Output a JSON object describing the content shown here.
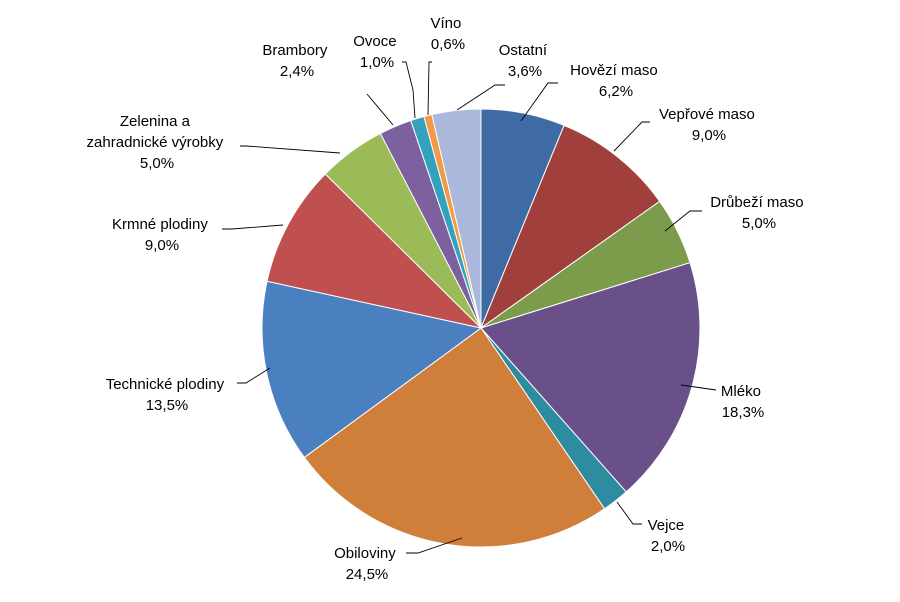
{
  "chart_data": {
    "type": "pie",
    "title": "",
    "start_angle_deg": 0,
    "direction": "clockwise",
    "slices": [
      {
        "name": "Hovězí maso",
        "value": 6.2,
        "label_value": "6,2%",
        "color": "#3e6ba4"
      },
      {
        "name": "Vepřové maso",
        "value": 9.0,
        "label_value": "9,0%",
        "color": "#a03f3c"
      },
      {
        "name": "Drůbeží maso",
        "value": 5.0,
        "label_value": "5,0%",
        "color": "#7c9c4c"
      },
      {
        "name": "Mléko",
        "value": 18.3,
        "label_value": "18,3%",
        "color": "#6a5088"
      },
      {
        "name": "Vejce",
        "value": 2.0,
        "label_value": "2,0%",
        "color": "#2e8ca0"
      },
      {
        "name": "Obiloviny",
        "value": 24.5,
        "label_value": "24,5%",
        "color": "#d07f3a"
      },
      {
        "name": "Technické plodiny",
        "value": 13.5,
        "label_value": "13,5%",
        "color": "#4a7fc0"
      },
      {
        "name": "Krmné plodiny",
        "value": 9.0,
        "label_value": "9,0%",
        "color": "#c05050"
      },
      {
        "name": "Zelenina a zahradnické výrobky",
        "value": 5.0,
        "label_value": "5,0%",
        "color": "#9bbb58"
      },
      {
        "name": "Brambory",
        "value": 2.4,
        "label_value": "2,4%",
        "color": "#7d60a0"
      },
      {
        "name": "Ovoce",
        "value": 1.0,
        "label_value": "1,0%",
        "color": "#34a2be"
      },
      {
        "name": "Víno",
        "value": 0.6,
        "label_value": "0,6%",
        "color": "#f39a47"
      },
      {
        "name": "Ostatní",
        "value": 3.6,
        "label_value": "3,6%",
        "color": "#a9b8db"
      }
    ]
  },
  "labels": {
    "hovezi": {
      "line1": "Hovězí maso",
      "line2": "6,2%"
    },
    "veprove": {
      "line1": "Vepřové maso",
      "line2": "9,0%"
    },
    "drubezi": {
      "line1": "Drůbeží maso",
      "line2": "5,0%"
    },
    "mleko": {
      "line1": "Mléko",
      "line2": "18,3%"
    },
    "vejce": {
      "line1": "Vejce",
      "line2": "2,0%"
    },
    "obiloviny": {
      "line1": "Obiloviny",
      "line2": "24,5%"
    },
    "technicke": {
      "line1": "Technické plodiny",
      "line2": "13,5%"
    },
    "krmne": {
      "line1": "Krmné plodiny",
      "line2": "9,0%"
    },
    "zelenina": {
      "line1": "Zelenina a",
      "line2": "zahradnické výrobky",
      "line3": "5,0%"
    },
    "brambory": {
      "line1": "Brambory",
      "line2": "2,4%"
    },
    "ovoce": {
      "line1": "Ovoce",
      "line2": "1,0%"
    },
    "vino": {
      "line1": "Víno",
      "line2": "0,6%"
    },
    "ostatni": {
      "line1": "Ostatní",
      "line2": "3,6%"
    }
  }
}
